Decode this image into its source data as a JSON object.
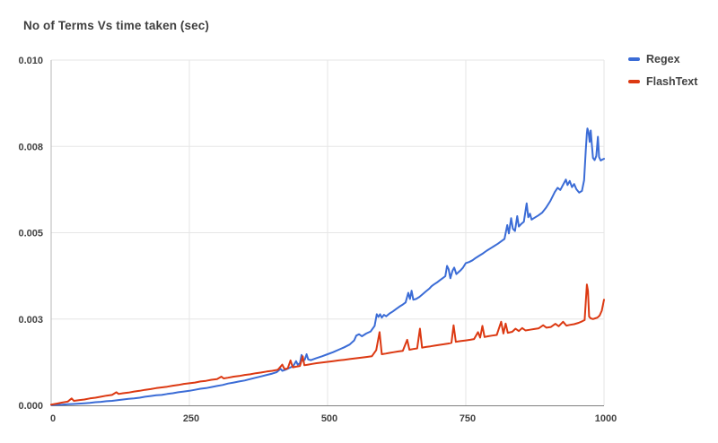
{
  "title": "No of Terms Vs time taken (sec)",
  "colors": {
    "regex_line": "#3b6cd6",
    "flashtext_line": "#dc3912",
    "gridline": "#e6e6e6",
    "y_axis_line": "#b7b7b7",
    "x_axis_line": "#808080",
    "text": "#424242"
  },
  "chart_data": {
    "type": "line",
    "title": "No of Terms Vs time taken (sec)",
    "xlabel": "",
    "ylabel": "",
    "xlim": [
      0,
      1000
    ],
    "ylim": [
      0,
      0.01
    ],
    "grid": true,
    "legend_position": "right",
    "x_ticks": [
      {
        "value": 0,
        "label": "0"
      },
      {
        "value": 250,
        "label": "250"
      },
      {
        "value": 500,
        "label": "500"
      },
      {
        "value": 750,
        "label": "750"
      },
      {
        "value": 1000,
        "label": "1000"
      }
    ],
    "y_ticks": [
      {
        "value": 0,
        "label": "0.000"
      },
      {
        "value": 0.0025,
        "label": "0.003"
      },
      {
        "value": 0.005,
        "label": "0.005"
      },
      {
        "value": 0.0075,
        "label": "0.008"
      },
      {
        "value": 0.01,
        "label": "0.010"
      }
    ],
    "series": [
      {
        "name": "Regex",
        "color": "#3b6cd6",
        "points": [
          [
            0,
            1e-05
          ],
          [
            10,
            1.5e-05
          ],
          [
            20,
            2e-05
          ],
          [
            30,
            3e-05
          ],
          [
            40,
            4e-05
          ],
          [
            50,
            5e-05
          ],
          [
            60,
            6e-05
          ],
          [
            70,
            7e-05
          ],
          [
            80,
            9e-05
          ],
          [
            90,
            0.0001
          ],
          [
            100,
            0.00012
          ],
          [
            110,
            0.00013
          ],
          [
            120,
            0.00015
          ],
          [
            130,
            0.00017
          ],
          [
            140,
            0.00019
          ],
          [
            150,
            0.0002
          ],
          [
            160,
            0.00022
          ],
          [
            170,
            0.00025
          ],
          [
            180,
            0.00027
          ],
          [
            190,
            0.00029
          ],
          [
            200,
            0.0003
          ],
          [
            210,
            0.00033
          ],
          [
            220,
            0.00035
          ],
          [
            230,
            0.00038
          ],
          [
            240,
            0.0004
          ],
          [
            250,
            0.00042
          ],
          [
            260,
            0.00045
          ],
          [
            270,
            0.00048
          ],
          [
            280,
            0.0005
          ],
          [
            290,
            0.00053
          ],
          [
            300,
            0.00056
          ],
          [
            310,
            0.00059
          ],
          [
            320,
            0.00063
          ],
          [
            330,
            0.00066
          ],
          [
            340,
            0.00069
          ],
          [
            350,
            0.00072
          ],
          [
            360,
            0.00076
          ],
          [
            370,
            0.0008
          ],
          [
            380,
            0.00084
          ],
          [
            390,
            0.00088
          ],
          [
            400,
            0.00092
          ],
          [
            408,
            0.00096
          ],
          [
            415,
            0.00106
          ],
          [
            418,
            0.001
          ],
          [
            425,
            0.00104
          ],
          [
            432,
            0.00109
          ],
          [
            438,
            0.00114
          ],
          [
            443,
            0.00128
          ],
          [
            446,
            0.00118
          ],
          [
            450,
            0.00122
          ],
          [
            453,
            0.00146
          ],
          [
            456,
            0.00128
          ],
          [
            459,
            0.00133
          ],
          [
            462,
            0.00148
          ],
          [
            465,
            0.00133
          ],
          [
            470,
            0.00131
          ],
          [
            475,
            0.00134
          ],
          [
            480,
            0.00137
          ],
          [
            490,
            0.00142
          ],
          [
            500,
            0.00148
          ],
          [
            510,
            0.00154
          ],
          [
            520,
            0.00161
          ],
          [
            530,
            0.00168
          ],
          [
            540,
            0.00176
          ],
          [
            548,
            0.00188
          ],
          [
            552,
            0.00202
          ],
          [
            557,
            0.00206
          ],
          [
            562,
            0.002
          ],
          [
            570,
            0.00208
          ],
          [
            578,
            0.00214
          ],
          [
            585,
            0.0023
          ],
          [
            589,
            0.00264
          ],
          [
            592,
            0.00256
          ],
          [
            595,
            0.00264
          ],
          [
            598,
            0.00254
          ],
          [
            602,
            0.00262
          ],
          [
            606,
            0.00258
          ],
          [
            612,
            0.00266
          ],
          [
            618,
            0.00272
          ],
          [
            624,
            0.00279
          ],
          [
            630,
            0.00286
          ],
          [
            636,
            0.00292
          ],
          [
            641,
            0.00298
          ],
          [
            646,
            0.00326
          ],
          [
            649,
            0.00308
          ],
          [
            652,
            0.00332
          ],
          [
            655,
            0.00306
          ],
          [
            660,
            0.00308
          ],
          [
            666,
            0.00314
          ],
          [
            672,
            0.00322
          ],
          [
            678,
            0.0033
          ],
          [
            684,
            0.00338
          ],
          [
            688,
            0.00345
          ],
          [
            692,
            0.0035
          ],
          [
            698,
            0.00356
          ],
          [
            703,
            0.00362
          ],
          [
            708,
            0.00368
          ],
          [
            713,
            0.00374
          ],
          [
            716,
            0.00404
          ],
          [
            719,
            0.00394
          ],
          [
            722,
            0.00368
          ],
          [
            726,
            0.0039
          ],
          [
            729,
            0.00399
          ],
          [
            733,
            0.0038
          ],
          [
            737,
            0.00386
          ],
          [
            741,
            0.00392
          ],
          [
            745,
            0.00399
          ],
          [
            750,
            0.00412
          ],
          [
            756,
            0.00415
          ],
          [
            762,
            0.0042
          ],
          [
            768,
            0.00427
          ],
          [
            775,
            0.00434
          ],
          [
            781,
            0.0044
          ],
          [
            788,
            0.00448
          ],
          [
            795,
            0.00455
          ],
          [
            801,
            0.00461
          ],
          [
            808,
            0.00468
          ],
          [
            815,
            0.00476
          ],
          [
            820,
            0.00482
          ],
          [
            825,
            0.00522
          ],
          [
            828,
            0.00498
          ],
          [
            832,
            0.00542
          ],
          [
            835,
            0.00512
          ],
          [
            839,
            0.00505
          ],
          [
            843,
            0.00548
          ],
          [
            846,
            0.00518
          ],
          [
            850,
            0.00525
          ],
          [
            855,
            0.00532
          ],
          [
            860,
            0.00585
          ],
          [
            863,
            0.00545
          ],
          [
            866,
            0.00555
          ],
          [
            869,
            0.00538
          ],
          [
            873,
            0.00542
          ],
          [
            877,
            0.00546
          ],
          [
            881,
            0.0055
          ],
          [
            888,
            0.00558
          ],
          [
            895,
            0.00572
          ],
          [
            903,
            0.00592
          ],
          [
            911,
            0.00618
          ],
          [
            916,
            0.0063
          ],
          [
            921,
            0.00624
          ],
          [
            926,
            0.00639
          ],
          [
            931,
            0.00654
          ],
          [
            934,
            0.00638
          ],
          [
            938,
            0.0065
          ],
          [
            942,
            0.00632
          ],
          [
            946,
            0.00641
          ],
          [
            950,
            0.00626
          ],
          [
            955,
            0.00616
          ],
          [
            960,
            0.00621
          ],
          [
            964,
            0.00652
          ],
          [
            967,
            0.0074
          ],
          [
            969,
            0.00788
          ],
          [
            970,
            0.00802
          ],
          [
            972,
            0.0079
          ],
          [
            974,
            0.00763
          ],
          [
            976,
            0.00796
          ],
          [
            978,
            0.00756
          ],
          [
            980,
            0.00717
          ],
          [
            983,
            0.0071
          ],
          [
            986,
            0.00722
          ],
          [
            989,
            0.00778
          ],
          [
            991,
            0.00719
          ],
          [
            994,
            0.00709
          ],
          [
            997,
            0.00712
          ],
          [
            1000,
            0.00714
          ]
        ]
      },
      {
        "name": "FlashText",
        "color": "#dc3912",
        "points": [
          [
            0,
            2e-05
          ],
          [
            10,
            5e-05
          ],
          [
            20,
            8e-05
          ],
          [
            30,
            0.00011
          ],
          [
            37,
            0.0002
          ],
          [
            41,
            0.00013
          ],
          [
            50,
            0.00015
          ],
          [
            60,
            0.00017
          ],
          [
            70,
            0.0002
          ],
          [
            80,
            0.00022
          ],
          [
            90,
            0.00025
          ],
          [
            100,
            0.00028
          ],
          [
            110,
            0.0003
          ],
          [
            118,
            0.00038
          ],
          [
            122,
            0.00033
          ],
          [
            130,
            0.00035
          ],
          [
            140,
            0.00037
          ],
          [
            150,
            0.0004
          ],
          [
            160,
            0.00042
          ],
          [
            170,
            0.00045
          ],
          [
            180,
            0.00047
          ],
          [
            190,
            0.0005
          ],
          [
            200,
            0.00052
          ],
          [
            210,
            0.00054
          ],
          [
            220,
            0.00057
          ],
          [
            230,
            0.00059
          ],
          [
            240,
            0.00062
          ],
          [
            250,
            0.00064
          ],
          [
            260,
            0.00066
          ],
          [
            270,
            0.00069
          ],
          [
            280,
            0.00071
          ],
          [
            290,
            0.00074
          ],
          [
            300,
            0.00076
          ],
          [
            308,
            0.00083
          ],
          [
            312,
            0.00078
          ],
          [
            320,
            0.0008
          ],
          [
            330,
            0.00083
          ],
          [
            340,
            0.00085
          ],
          [
            350,
            0.00088
          ],
          [
            360,
            0.0009
          ],
          [
            370,
            0.00093
          ],
          [
            380,
            0.00095
          ],
          [
            390,
            0.00098
          ],
          [
            400,
            0.001
          ],
          [
            410,
            0.00103
          ],
          [
            418,
            0.00118
          ],
          [
            422,
            0.00105
          ],
          [
            428,
            0.00107
          ],
          [
            433,
            0.0013
          ],
          [
            437,
            0.0011
          ],
          [
            443,
            0.00112
          ],
          [
            450,
            0.00114
          ],
          [
            455,
            0.00142
          ],
          [
            458,
            0.00116
          ],
          [
            465,
            0.00118
          ],
          [
            472,
            0.0012
          ],
          [
            480,
            0.00122
          ],
          [
            490,
            0.00124
          ],
          [
            500,
            0.00126
          ],
          [
            510,
            0.00128
          ],
          [
            520,
            0.0013
          ],
          [
            530,
            0.00132
          ],
          [
            540,
            0.00134
          ],
          [
            550,
            0.00136
          ],
          [
            560,
            0.00138
          ],
          [
            570,
            0.0014
          ],
          [
            580,
            0.00142
          ],
          [
            588,
            0.0016
          ],
          [
            594,
            0.00212
          ],
          [
            598,
            0.00148
          ],
          [
            605,
            0.0015
          ],
          [
            612,
            0.00152
          ],
          [
            620,
            0.00154
          ],
          [
            628,
            0.00156
          ],
          [
            636,
            0.00158
          ],
          [
            644,
            0.0019
          ],
          [
            648,
            0.00161
          ],
          [
            655,
            0.00163
          ],
          [
            662,
            0.00165
          ],
          [
            667,
            0.00222
          ],
          [
            671,
            0.00167
          ],
          [
            678,
            0.00169
          ],
          [
            686,
            0.00171
          ],
          [
            694,
            0.00173
          ],
          [
            702,
            0.00175
          ],
          [
            710,
            0.00177
          ],
          [
            718,
            0.00179
          ],
          [
            724,
            0.00181
          ],
          [
            728,
            0.00232
          ],
          [
            732,
            0.00184
          ],
          [
            740,
            0.00186
          ],
          [
            750,
            0.00188
          ],
          [
            758,
            0.0019
          ],
          [
            765,
            0.00192
          ],
          [
            772,
            0.00212
          ],
          [
            776,
            0.00196
          ],
          [
            780,
            0.0023
          ],
          [
            784,
            0.00198
          ],
          [
            790,
            0.002
          ],
          [
            798,
            0.00202
          ],
          [
            806,
            0.00204
          ],
          [
            814,
            0.00242
          ],
          [
            818,
            0.00208
          ],
          [
            822,
            0.00237
          ],
          [
            826,
            0.0021
          ],
          [
            834,
            0.00213
          ],
          [
            840,
            0.00222
          ],
          [
            846,
            0.00215
          ],
          [
            852,
            0.00224
          ],
          [
            858,
            0.00217
          ],
          [
            866,
            0.00219
          ],
          [
            874,
            0.00221
          ],
          [
            882,
            0.00223
          ],
          [
            890,
            0.00232
          ],
          [
            896,
            0.00225
          ],
          [
            904,
            0.00227
          ],
          [
            912,
            0.00236
          ],
          [
            918,
            0.00229
          ],
          [
            926,
            0.00242
          ],
          [
            932,
            0.00231
          ],
          [
            938,
            0.00233
          ],
          [
            946,
            0.00235
          ],
          [
            954,
            0.00239
          ],
          [
            960,
            0.00243
          ],
          [
            965,
            0.00247
          ],
          [
            969,
            0.0035
          ],
          [
            971,
            0.00332
          ],
          [
            973,
            0.00257
          ],
          [
            976,
            0.00252
          ],
          [
            980,
            0.0025
          ],
          [
            984,
            0.00252
          ],
          [
            988,
            0.00254
          ],
          [
            992,
            0.0026
          ],
          [
            996,
            0.00274
          ],
          [
            1000,
            0.00306
          ]
        ]
      }
    ]
  }
}
